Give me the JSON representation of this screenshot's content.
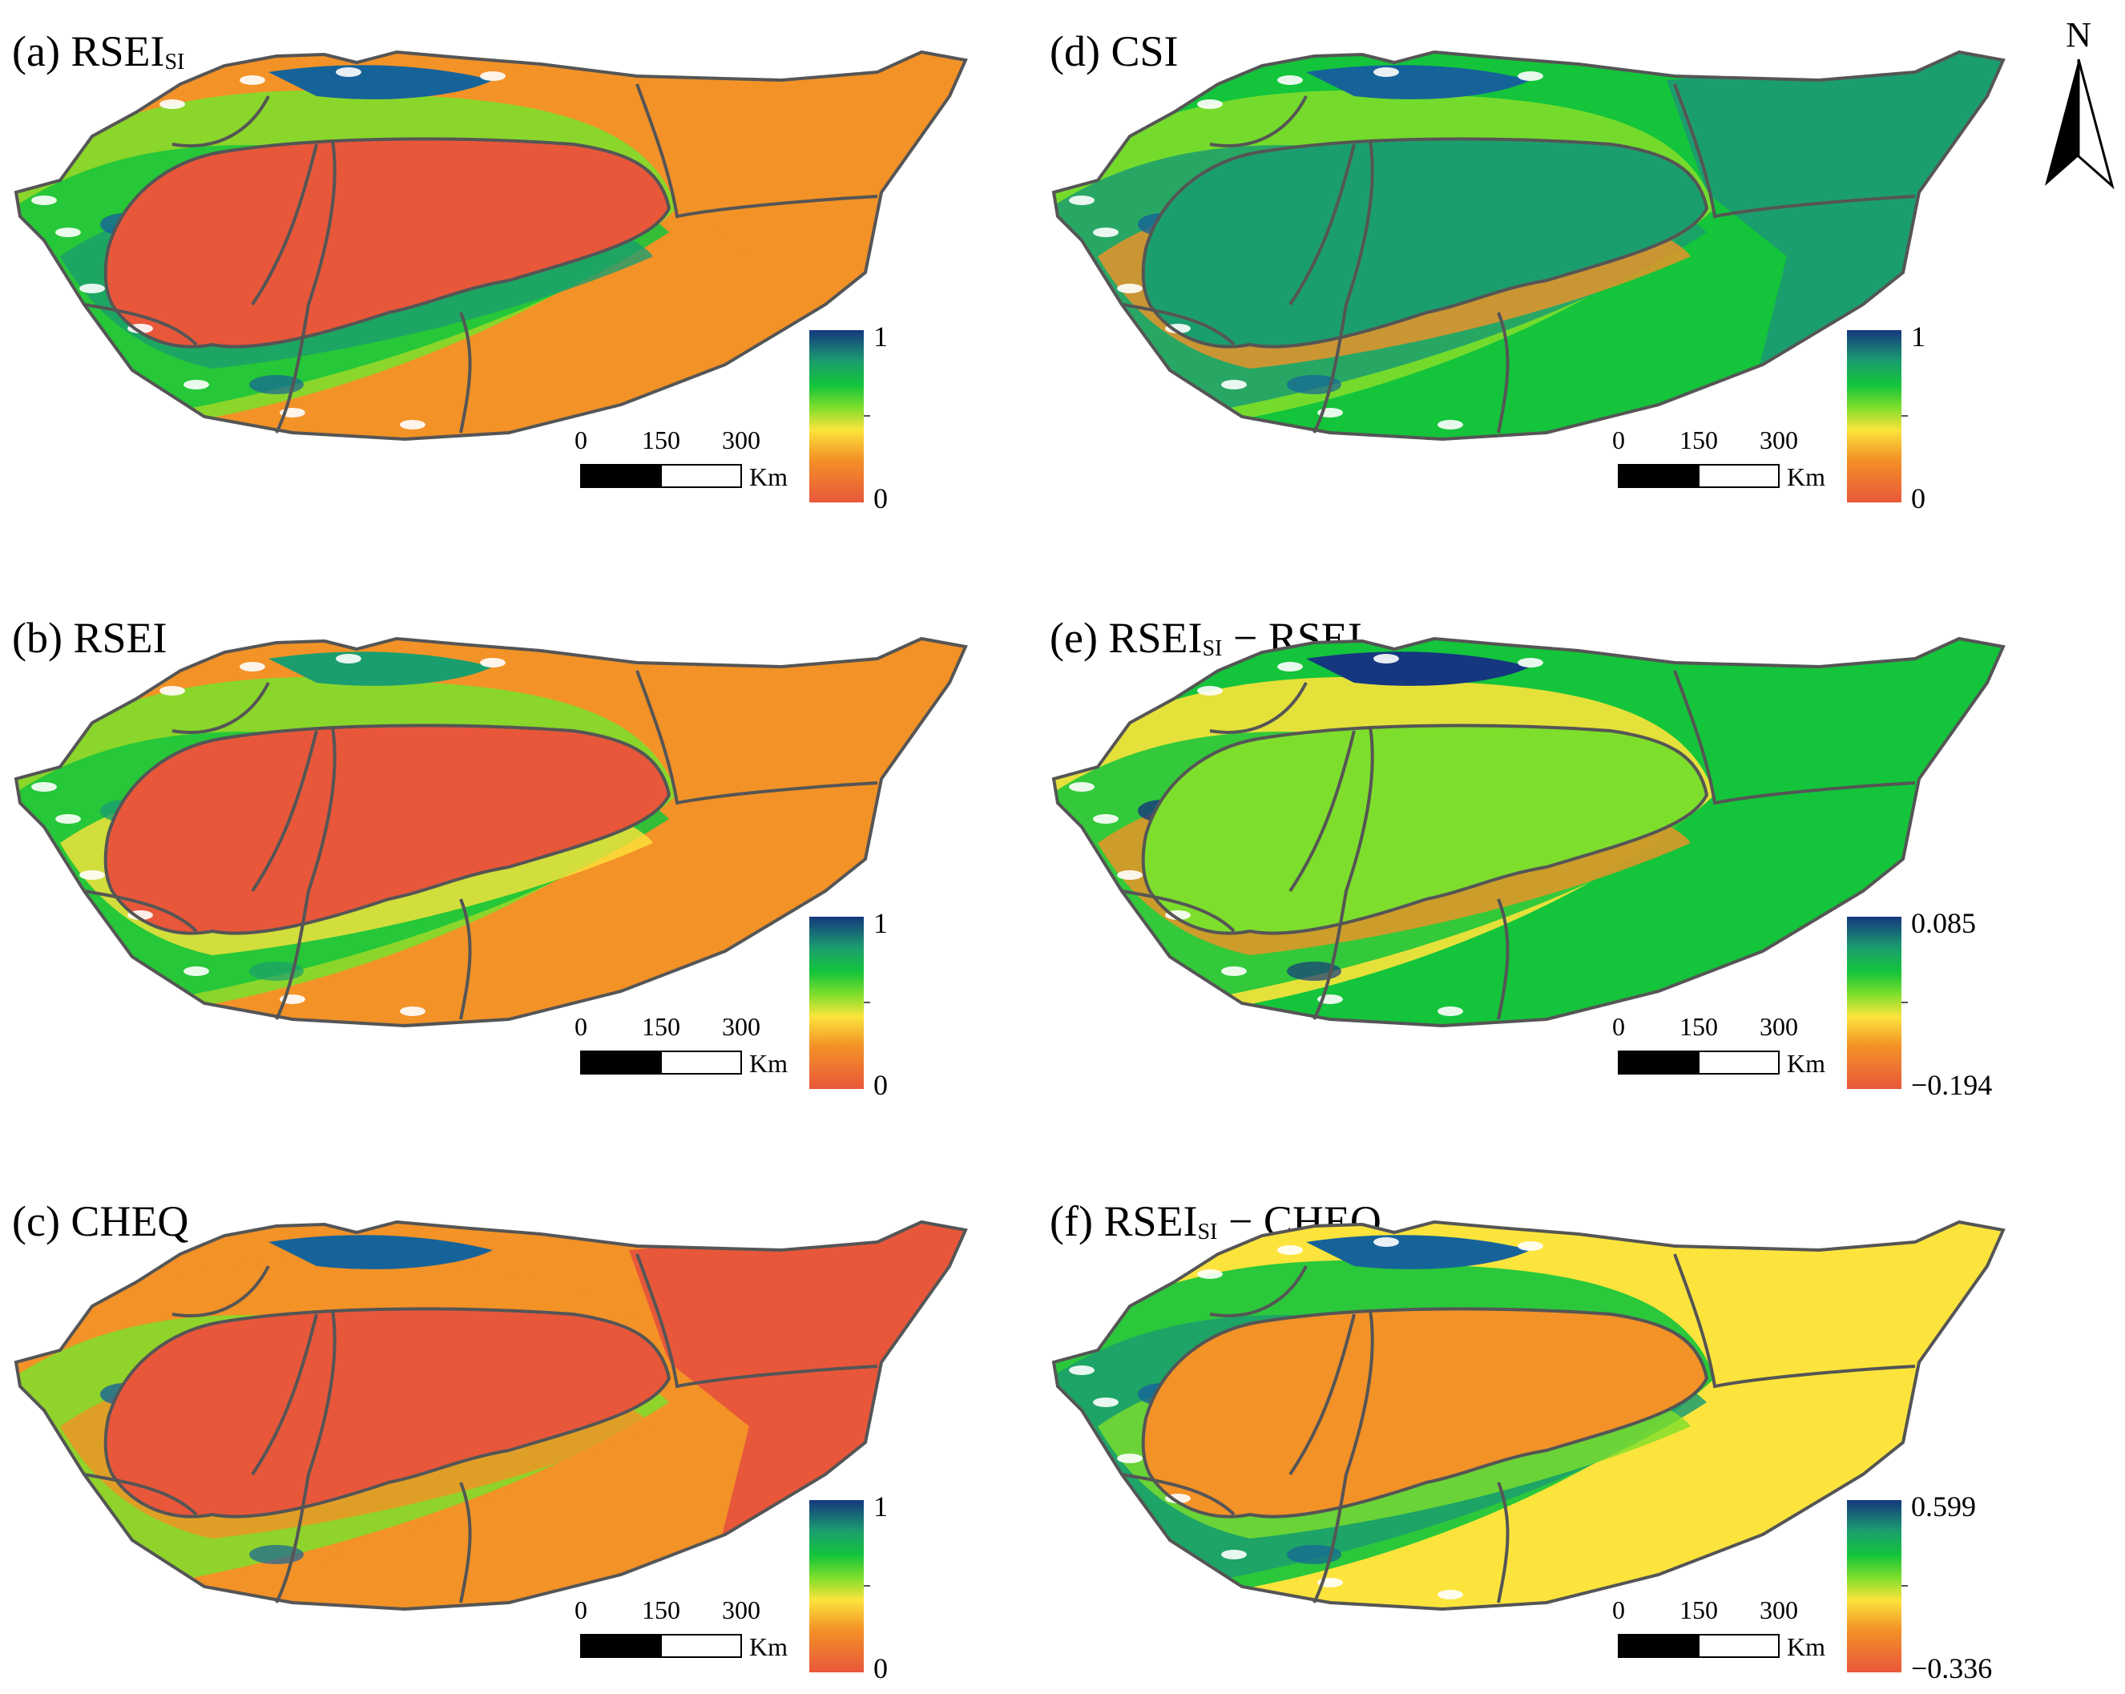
{
  "north_arrow": {
    "label": "N"
  },
  "scale_bar": {
    "ticks": [
      "0",
      "150",
      "300"
    ],
    "unit": "Km"
  },
  "palettes": {
    "ramp": [
      "#e8573a",
      "#f39227",
      "#fce43c",
      "#7ede2c",
      "#14c43b",
      "#1b9e6e",
      "#16639a",
      "#15377f"
    ],
    "boundary": "#555555",
    "snow": "#ffffff"
  },
  "panels": [
    {
      "id": "a",
      "title_main": "(a) RSEI",
      "title_sub": "SI",
      "title_tail": "",
      "legend_max": "1",
      "legend_min": "0",
      "pattern": "rsei_si"
    },
    {
      "id": "b",
      "title_main": "(b) RSEI",
      "title_sub": "",
      "title_tail": "",
      "legend_max": "1",
      "legend_min": "0",
      "pattern": "rsei"
    },
    {
      "id": "c",
      "title_main": "(c) CHEQ",
      "title_sub": "",
      "title_tail": "",
      "legend_max": "1",
      "legend_min": "0",
      "pattern": "cheq"
    },
    {
      "id": "d",
      "title_main": "(d) CSI",
      "title_sub": "",
      "title_tail": "",
      "legend_max": "1",
      "legend_min": "0",
      "pattern": "csi"
    },
    {
      "id": "e",
      "title_main": "(e) RSEI",
      "title_sub": "SI",
      "title_tail": " − RSEI",
      "legend_max": "0.085",
      "legend_min": "−0.194",
      "pattern": "diff_rsei"
    },
    {
      "id": "f",
      "title_main": "(f) RSEI",
      "title_sub": "SI",
      "title_tail": " − CHEQ",
      "legend_max": "0.599",
      "legend_min": "−0.336",
      "pattern": "diff_cheq"
    }
  ]
}
